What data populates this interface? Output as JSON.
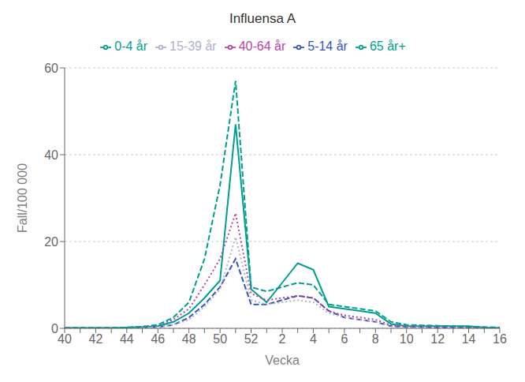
{
  "chart_data": {
    "type": "line",
    "title": "Influensa A",
    "x_label": "Vecka",
    "y_label": "Fall/100 000",
    "categories": [
      "40",
      null,
      "42",
      null,
      "44",
      null,
      "46",
      null,
      "48",
      null,
      "50",
      null,
      "52",
      null,
      "2",
      null,
      "4",
      null,
      "6",
      null,
      "8",
      null,
      "10",
      null,
      "12",
      null,
      "14",
      null,
      "16"
    ],
    "series": [
      {
        "name": "0-4 år",
        "color": "#009e8e",
        "line_style": "solid",
        "values": [
          0.1,
          0.1,
          0.1,
          0.1,
          0.2,
          0.3,
          0.5,
          1.5,
          3.5,
          7.0,
          11.0,
          47.0,
          9.0,
          6.0,
          10.5,
          15.0,
          13.5,
          5.0,
          4.5,
          4.0,
          3.5,
          1.0,
          0.5,
          0.5,
          0.5,
          0.5,
          0.5,
          0.2,
          0.1
        ]
      },
      {
        "name": "5-14 år",
        "color": "#3355bb",
        "line_style": "dashed",
        "values": [
          0.1,
          0.1,
          0.1,
          0.1,
          0.1,
          0.2,
          0.3,
          0.8,
          2.5,
          5.5,
          9.5,
          16.0,
          5.5,
          5.5,
          6.5,
          7.5,
          7.0,
          4.0,
          2.5,
          2.0,
          1.5,
          0.5,
          0.3,
          0.3,
          0.2,
          0.2,
          0.2,
          0.1,
          0.1
        ]
      },
      {
        "name": "15-39 år",
        "color": "#b0b0cc",
        "line_style": "dotted",
        "values": [
          0.1,
          0.1,
          0.1,
          0.1,
          0.1,
          0.2,
          0.3,
          0.8,
          2.0,
          5.0,
          9.0,
          21.0,
          6.5,
          5.5,
          6.0,
          6.5,
          6.0,
          3.5,
          2.5,
          2.0,
          1.5,
          0.5,
          0.3,
          0.3,
          0.2,
          0.2,
          0.2,
          0.1,
          0.1
        ]
      },
      {
        "name": "40-64 år",
        "color": "#bb44aa",
        "line_style": "dotted",
        "values": [
          0.1,
          0.1,
          0.1,
          0.1,
          0.2,
          0.4,
          0.7,
          2.0,
          4.5,
          10.0,
          16.0,
          26.5,
          8.0,
          6.5,
          7.0,
          7.5,
          7.0,
          4.0,
          3.0,
          2.5,
          2.0,
          0.7,
          0.4,
          0.4,
          0.3,
          0.3,
          0.2,
          0.1,
          0.1
        ]
      },
      {
        "name": "65 år+",
        "color": "#009e8e",
        "line_style": "dashed",
        "values": [
          0.1,
          0.1,
          0.1,
          0.1,
          0.2,
          0.4,
          0.8,
          2.5,
          6.0,
          16.0,
          33.0,
          57.0,
          9.5,
          8.5,
          9.5,
          10.5,
          10.0,
          5.5,
          5.0,
          4.5,
          4.0,
          1.5,
          0.8,
          0.7,
          0.6,
          0.5,
          0.4,
          0.3,
          0.2
        ]
      }
    ],
    "ylim": [
      0,
      60
    ],
    "yticks": [
      0,
      20,
      40,
      60
    ],
    "grid": true,
    "legend": "top"
  }
}
